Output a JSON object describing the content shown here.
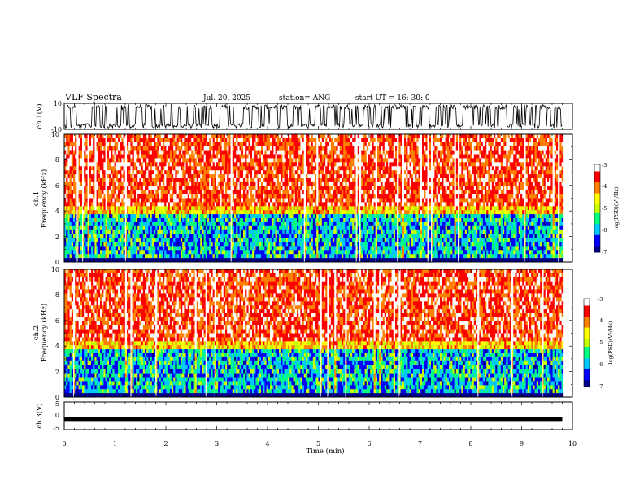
{
  "header": {
    "title": "VLF  Spectra",
    "date": "Jul.  20, 2025",
    "station": "station= ANG",
    "start_ut": "start  UT  =   16: 30: 0"
  },
  "chart_data": [
    {
      "type": "line",
      "panel": "ch1-waveform",
      "ylabel": "ch.1(V)",
      "ylim": [
        -10,
        10
      ],
      "yticks": [
        "10",
        "-10"
      ],
      "x_range_min": [
        0,
        9.8
      ],
      "description_values": "saturating waveform alternating between about -9 and +9 V"
    },
    {
      "type": "heatmap",
      "panel": "ch1-spectrogram",
      "ylabel_line1": "ch.1",
      "ylabel_line2": "Frequency  (kHz)",
      "ylim": [
        0,
        10
      ],
      "yticks": [
        "0",
        "2",
        "4",
        "6",
        "8",
        "10"
      ],
      "colorbar": {
        "label": "log(PSD)(V²/Hz)",
        "range": [
          -7,
          -3
        ],
        "ticks": [
          "-3",
          "-4",
          "-5",
          "-6",
          "-7"
        ],
        "colors": [
          "#00008b",
          "#0000ff",
          "#00c8ff",
          "#00ff80",
          "#c8ff00",
          "#ffff00",
          "#ff8000",
          "#ff0000",
          "#ffffff"
        ]
      }
    },
    {
      "type": "heatmap",
      "panel": "ch2-spectrogram",
      "ylabel_line1": "ch.2",
      "ylabel_line2": "Frequency  (kHz)",
      "ylim": [
        0,
        10
      ],
      "yticks": [
        "0",
        "2",
        "4",
        "6",
        "8",
        "10"
      ],
      "colorbar": {
        "label": "log(PSD)(V²/Hz)",
        "range": [
          -7,
          -3
        ],
        "ticks": [
          "-3",
          "-4",
          "-5",
          "-6",
          "-7"
        ],
        "colors": [
          "#00008b",
          "#0000ff",
          "#00c8ff",
          "#00ff80",
          "#c8ff00",
          "#ffff00",
          "#ff8000",
          "#ff0000",
          "#ffffff"
        ]
      }
    },
    {
      "type": "line",
      "panel": "ch3-level",
      "ylabel": "ch.3(V)",
      "ylim": [
        -5,
        5
      ],
      "yticks": [
        "5",
        "0",
        "-5"
      ],
      "x": [
        0,
        9.8
      ],
      "y": [
        -1.2,
        -1.2
      ]
    }
  ],
  "xaxis": {
    "label": "Time  (min)",
    "range": [
      0,
      10
    ],
    "ticks": [
      "0",
      "1",
      "2",
      "3",
      "4",
      "5",
      "6",
      "7",
      "8",
      "9",
      "10"
    ]
  }
}
